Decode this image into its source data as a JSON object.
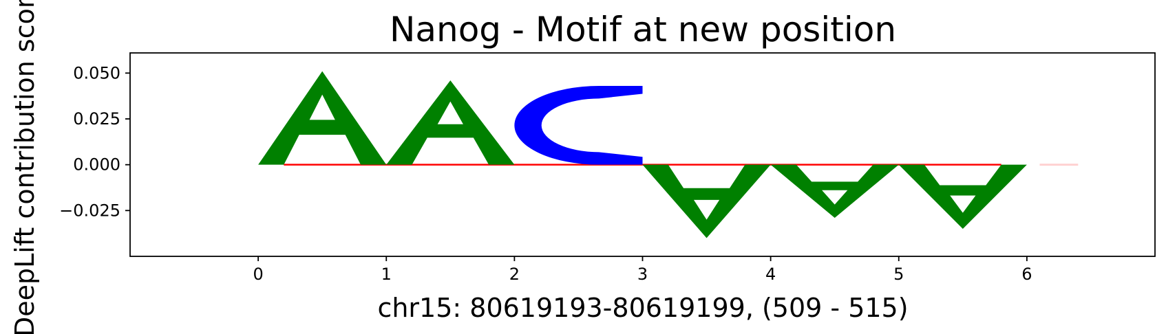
{
  "chart_data": {
    "type": "sequence-logo",
    "title": "Nanog - Motif at new position",
    "xlabel": "chr15: 80619193-80619199, (509 - 515)",
    "ylabel": "DeepLift contribution score",
    "xticks": [
      0,
      1,
      2,
      3,
      4,
      5,
      6
    ],
    "yticks": [
      0.05,
      0.025,
      0.0,
      -0.025
    ],
    "ytick_labels": [
      "0.050",
      "0.025",
      "0.000",
      "−0.025"
    ],
    "xlim": [
      -1.0,
      7.0
    ],
    "ylim": [
      -0.05,
      0.061
    ],
    "letters": [
      {
        "position": 0,
        "base": "A",
        "value": 0.051
      },
      {
        "position": 1,
        "base": "A",
        "value": 0.046
      },
      {
        "position": 2,
        "base": "C",
        "value": 0.043
      },
      {
        "position": 3,
        "base": "A",
        "value": -0.04
      },
      {
        "position": 4,
        "base": "A",
        "value": -0.029
      },
      {
        "position": 5,
        "base": "A",
        "value": -0.035
      },
      {
        "position": 6,
        "base": "T",
        "value": 0.0004
      }
    ],
    "colors": {
      "A": "#008000",
      "C": "#0000ff",
      "G": "#ffa500",
      "T": "#ff0000"
    },
    "baseline_color": "#ff0000",
    "grid": false,
    "legend": "none"
  }
}
